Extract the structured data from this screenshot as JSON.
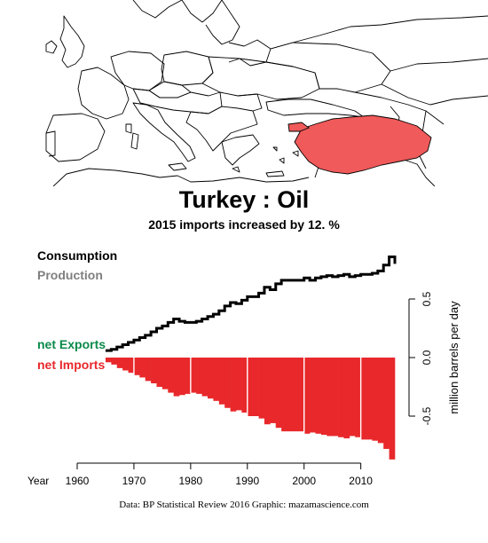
{
  "title": "Turkey :  Oil",
  "subtitle": "2015 imports increased by 12. %",
  "legend": {
    "consumption": "Consumption",
    "production": "Production",
    "net_exports": "net Exports",
    "net_imports": "net Imports"
  },
  "credits": "Data: BP Statistical Review 2016    Graphic: mazamascience.com",
  "colors": {
    "consumption": "#000000",
    "production": "#7f7f7f",
    "net_exports": "#0a8a4a",
    "net_imports": "#e8282b",
    "highlight_country": "#f05a5a"
  },
  "chart_data": {
    "type": "area",
    "xlabel": "Year",
    "ylabel": "million barrels per day",
    "xlim": [
      1960,
      2016
    ],
    "ylim": [
      -0.9,
      0.6
    ],
    "x_ticks": [
      1960,
      1970,
      1980,
      1990,
      2000,
      2010
    ],
    "y_ticks": [
      -0.5,
      0.0,
      0.5
    ],
    "x": [
      1965,
      1966,
      1967,
      1968,
      1969,
      1970,
      1971,
      1972,
      1973,
      1974,
      1975,
      1976,
      1977,
      1978,
      1979,
      1980,
      1981,
      1982,
      1983,
      1984,
      1985,
      1986,
      1987,
      1988,
      1989,
      1990,
      1991,
      1992,
      1993,
      1994,
      1995,
      1996,
      1997,
      1998,
      1999,
      2000,
      2001,
      2002,
      2003,
      2004,
      2005,
      2006,
      2007,
      2008,
      2009,
      2010,
      2011,
      2012,
      2013,
      2014,
      2015
    ],
    "series": [
      {
        "name": "Consumption",
        "values": [
          0.06,
          0.07,
          0.09,
          0.11,
          0.13,
          0.15,
          0.17,
          0.19,
          0.22,
          0.25,
          0.27,
          0.3,
          0.33,
          0.31,
          0.3,
          0.3,
          0.31,
          0.33,
          0.35,
          0.37,
          0.4,
          0.44,
          0.47,
          0.46,
          0.49,
          0.52,
          0.52,
          0.55,
          0.6,
          0.58,
          0.63,
          0.66,
          0.66,
          0.66,
          0.66,
          0.68,
          0.66,
          0.68,
          0.69,
          0.7,
          0.69,
          0.7,
          0.71,
          0.69,
          0.7,
          0.71,
          0.71,
          0.72,
          0.74,
          0.79,
          0.86
        ]
      },
      {
        "name": "net Imports",
        "values": [
          -0.04,
          -0.06,
          -0.09,
          -0.11,
          -0.13,
          -0.15,
          -0.17,
          -0.2,
          -0.22,
          -0.25,
          -0.27,
          -0.3,
          -0.33,
          -0.32,
          -0.31,
          -0.3,
          -0.31,
          -0.33,
          -0.35,
          -0.37,
          -0.4,
          -0.43,
          -0.46,
          -0.45,
          -0.47,
          -0.5,
          -0.5,
          -0.52,
          -0.57,
          -0.56,
          -0.6,
          -0.63,
          -0.63,
          -0.63,
          -0.63,
          -0.65,
          -0.64,
          -0.65,
          -0.66,
          -0.67,
          -0.67,
          -0.68,
          -0.69,
          -0.67,
          -0.68,
          -0.7,
          -0.7,
          -0.71,
          -0.73,
          -0.78,
          -0.87
        ]
      }
    ]
  }
}
